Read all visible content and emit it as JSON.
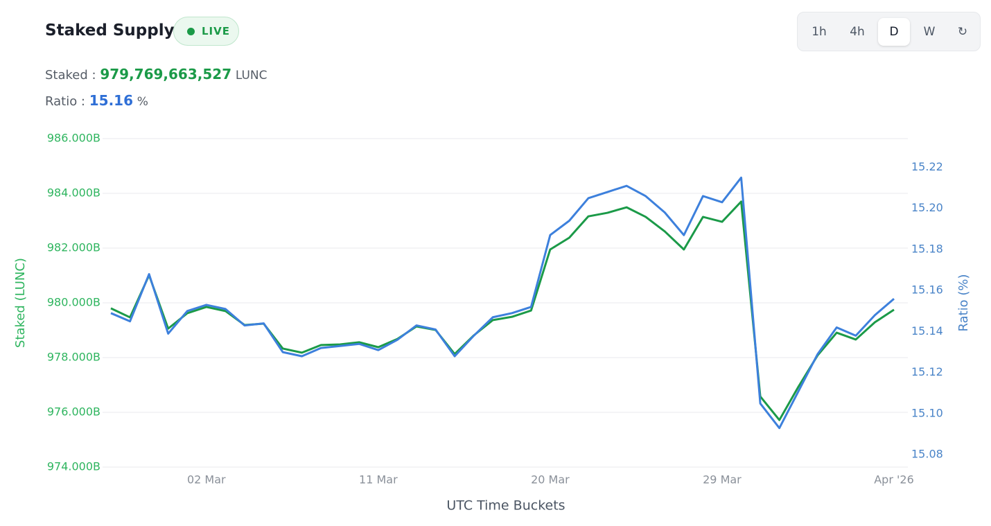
{
  "header": {
    "title": "Staked Supply",
    "status": "LIVE",
    "staked_label": "Staked :",
    "staked_value": "979,769,663,527",
    "staked_unit": "LUNC",
    "ratio_label": "Ratio :",
    "ratio_value": "15.16",
    "ratio_unit": "%"
  },
  "controls": [
    "1h",
    "4h",
    "D",
    "W",
    "↻"
  ],
  "chart_data": {
    "type": "line",
    "x_label": "UTC Time Buckets",
    "y_label": "Staked (LUNC)",
    "y2_label": "Ratio (%)",
    "categories": [
      null,
      null,
      null,
      null,
      null,
      "02 Mar",
      null,
      null,
      null,
      null,
      null,
      null,
      null,
      null,
      "11 Mar",
      null,
      null,
      null,
      null,
      null,
      null,
      null,
      null,
      "20 Mar",
      null,
      null,
      null,
      null,
      null,
      null,
      null,
      null,
      "29 Mar",
      null,
      null,
      null,
      null,
      null,
      null,
      null,
      null,
      "Apr '26"
    ],
    "series": [
      {
        "name": "Staked (LUNC)",
        "color": "#1b9a48",
        "axis": "y",
        "values": [
          979.8,
          979.47,
          981.01,
          979.06,
          979.62,
          979.85,
          979.7,
          979.19,
          979.24,
          978.33,
          978.18,
          978.46,
          978.48,
          978.56,
          978.38,
          978.68,
          979.14,
          979.01,
          978.13,
          978.81,
          979.37,
          979.49,
          979.72,
          981.95,
          982.38,
          983.16,
          983.29,
          983.49,
          983.14,
          982.61,
          981.95,
          983.14,
          982.96,
          983.7,
          976.58,
          975.72,
          976.94,
          978.08,
          978.91,
          978.66,
          979.29,
          979.75
        ]
      },
      {
        "name": "Ratio (%)",
        "color": "#3d80dc",
        "axis": "y2",
        "values": [
          15.149,
          15.145,
          15.168,
          15.139,
          15.15,
          15.153,
          15.151,
          15.143,
          15.144,
          15.13,
          15.128,
          15.132,
          15.133,
          15.134,
          15.131,
          15.136,
          15.143,
          15.141,
          15.128,
          15.138,
          15.147,
          15.149,
          15.152,
          15.187,
          15.194,
          15.205,
          15.208,
          15.211,
          15.206,
          15.198,
          15.187,
          15.206,
          15.203,
          15.215,
          15.105,
          15.093,
          15.111,
          15.129,
          15.142,
          15.138,
          15.148,
          15.156
        ]
      }
    ],
    "ylim": [
      974,
      986
    ],
    "yticks": [
      {
        "value": 974,
        "label": "974.000B"
      },
      {
        "value": 976,
        "label": "976.000B"
      },
      {
        "value": 978,
        "label": "978.000B"
      },
      {
        "value": 980,
        "label": "980.000B"
      },
      {
        "value": 982,
        "label": "982.000B"
      },
      {
        "value": 984,
        "label": "984.000B"
      },
      {
        "value": 986,
        "label": "986.000B"
      }
    ],
    "y2lim": [
      15.074,
      15.234
    ],
    "y2ticks": [
      15.08,
      {
        "value": 15.1,
        "label": "15.10"
      },
      15.12,
      15.14,
      15.16,
      15.18,
      {
        "value": 15.2,
        "label": "15.20"
      },
      15.22
    ],
    "grid": true,
    "ytick_color": "#2fb55f",
    "y2tick_color": "#4a84c8"
  }
}
